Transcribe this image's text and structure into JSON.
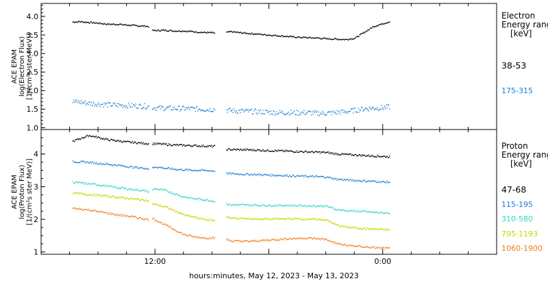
{
  "chart_data": [
    {
      "type": "scatter",
      "panel": "electron",
      "ylabel_lines": [
        "ACE EPAM",
        "log(Electron Flux)",
        "[1/(cm²s ster MeV)]"
      ],
      "ylim": [
        0.95,
        4.35
      ],
      "yticks": [
        "1.0",
        "1.5",
        "2.0",
        "2.5",
        "3.0",
        "3.5",
        "4.0"
      ],
      "legend_title": [
        "Electron",
        "Energy range",
        "[keV]"
      ],
      "colors": {
        "38-53": "#000000",
        "175-315": "#1f7fd0"
      },
      "series": [
        {
          "name": "38-53",
          "color": "#000000",
          "segments": [
            {
              "t": [
                3.3,
                4,
                5,
                6,
                7,
                8,
                9,
                10,
                11,
                11.3
              ],
              "y": [
                3.86,
                3.87,
                3.85,
                3.83,
                3.8,
                3.8,
                3.78,
                3.76,
                3.75,
                3.74
              ]
            },
            {
              "t": [
                11.7,
                12,
                13,
                14,
                15,
                16,
                17,
                18,
                18.3
              ],
              "y": [
                3.63,
                3.63,
                3.64,
                3.62,
                3.62,
                3.6,
                3.58,
                3.57,
                3.56
              ]
            },
            {
              "t": [
                19.5,
                20,
                21,
                22,
                23,
                24,
                25,
                26,
                27,
                28,
                29,
                30,
                31,
                32,
                33,
                34,
                35,
                36,
                36.7
              ],
              "y": [
                3.58,
                3.6,
                3.57,
                3.55,
                3.53,
                3.51,
                3.49,
                3.47,
                3.45,
                3.44,
                3.43,
                3.41,
                3.4,
                3.39,
                3.42,
                3.58,
                3.74,
                3.82,
                3.87
              ]
            }
          ]
        },
        {
          "name": "175-315",
          "color": "#1f7fd0",
          "segments": [
            {
              "t": [
                3.3,
                4,
                5,
                6,
                7,
                8,
                9,
                10,
                11,
                11.3
              ],
              "y": [
                1.72,
                1.7,
                1.67,
                1.65,
                1.63,
                1.62,
                1.61,
                1.6,
                1.59,
                1.58
              ]
            },
            {
              "t": [
                11.7,
                12,
                13,
                14,
                15,
                16,
                17,
                18,
                18.3
              ],
              "y": [
                1.56,
                1.55,
                1.54,
                1.53,
                1.53,
                1.52,
                1.51,
                1.5,
                1.52
              ]
            },
            {
              "t": [
                19.5,
                20,
                21,
                22,
                23,
                24,
                25,
                26,
                27,
                28,
                29,
                30,
                31,
                32,
                33,
                34,
                35,
                36,
                36.7
              ],
              "y": [
                1.49,
                1.47,
                1.46,
                1.45,
                1.44,
                1.43,
                1.42,
                1.42,
                1.41,
                1.42,
                1.4,
                1.4,
                1.42,
                1.44,
                1.48,
                1.52,
                1.54,
                1.55,
                1.57
              ]
            }
          ]
        }
      ]
    },
    {
      "type": "scatter",
      "panel": "proton",
      "ylabel_lines": [
        "ACE EPAM",
        "log(Proton Flux)",
        "[1/(cm²s ster MeV)]"
      ],
      "ylim": [
        0.93,
        4.75
      ],
      "yticks": [
        "1",
        "2",
        "3",
        "4"
      ],
      "legend_title": [
        "Proton",
        "Energy range",
        "[keV]"
      ],
      "colors": {
        "47-68": "#000000",
        "115-195": "#1f7fd0",
        "310-580": "#33d6c0",
        "795-1193": "#c8d400",
        "1060-1900": "#f07f1a"
      },
      "series": [
        {
          "name": "47-68",
          "color": "#000000",
          "segments": [
            {
              "t": [
                3.3,
                4,
                5,
                6,
                7,
                8,
                9,
                10,
                11,
                11.3
              ],
              "y": [
                4.4,
                4.48,
                4.58,
                4.52,
                4.45,
                4.42,
                4.38,
                4.36,
                4.34,
                4.32
              ]
            },
            {
              "t": [
                11.7,
                12,
                13,
                14,
                15,
                16,
                17,
                18,
                18.3
              ],
              "y": [
                4.33,
                4.33,
                4.31,
                4.29,
                4.28,
                4.27,
                4.26,
                4.25,
                4.25
              ]
            },
            {
              "t": [
                19.5,
                20,
                22,
                24,
                26,
                28,
                30,
                31,
                32,
                34,
                36,
                36.7
              ],
              "y": [
                4.15,
                4.15,
                4.14,
                4.12,
                4.1,
                4.08,
                4.06,
                4.02,
                4.0,
                3.97,
                3.94,
                3.93
              ]
            }
          ]
        },
        {
          "name": "115-195",
          "color": "#1f7fd0",
          "segments": [
            {
              "t": [
                3.3,
                4,
                5,
                6,
                7,
                8,
                9,
                10,
                11,
                11.3
              ],
              "y": [
                3.78,
                3.77,
                3.76,
                3.73,
                3.7,
                3.67,
                3.63,
                3.6,
                3.58,
                3.56
              ]
            },
            {
              "t": [
                11.7,
                12,
                13,
                14,
                15,
                16,
                17,
                18,
                18.3
              ],
              "y": [
                3.58,
                3.62,
                3.58,
                3.55,
                3.53,
                3.52,
                3.51,
                3.5,
                3.5
              ]
            },
            {
              "t": [
                19.5,
                20,
                22,
                24,
                26,
                28,
                30,
                31,
                32,
                34,
                36,
                36.7
              ],
              "y": [
                3.42,
                3.41,
                3.39,
                3.37,
                3.35,
                3.33,
                3.31,
                3.25,
                3.22,
                3.19,
                3.16,
                3.15
              ]
            }
          ]
        },
        {
          "name": "310-580",
          "color": "#33d6c0",
          "segments": [
            {
              "t": [
                3.3,
                4,
                5,
                6,
                7,
                8,
                9,
                10,
                11,
                11.3
              ],
              "y": [
                3.15,
                3.13,
                3.1,
                3.07,
                3.03,
                2.98,
                2.95,
                2.92,
                2.88,
                2.85
              ]
            },
            {
              "t": [
                11.7,
                12,
                13,
                14,
                15,
                16,
                17,
                18,
                18.3
              ],
              "y": [
                2.92,
                2.95,
                2.9,
                2.8,
                2.7,
                2.65,
                2.62,
                2.58,
                2.55
              ]
            },
            {
              "t": [
                19.5,
                20,
                22,
                24,
                26,
                28,
                30,
                31,
                32,
                34,
                36,
                36.7
              ],
              "y": [
                2.48,
                2.46,
                2.45,
                2.44,
                2.44,
                2.43,
                2.42,
                2.32,
                2.28,
                2.25,
                2.21,
                2.2
              ]
            }
          ]
        },
        {
          "name": "795-1193",
          "color": "#c8d400",
          "segments": [
            {
              "t": [
                3.3,
                4,
                5,
                6,
                7,
                8,
                9,
                10,
                11,
                11.3
              ],
              "y": [
                2.82,
                2.8,
                2.77,
                2.75,
                2.72,
                2.69,
                2.66,
                2.63,
                2.6,
                2.57
              ]
            },
            {
              "t": [
                11.7,
                12,
                13,
                14,
                15,
                16,
                17,
                18,
                18.3
              ],
              "y": [
                2.48,
                2.47,
                2.4,
                2.28,
                2.15,
                2.08,
                2.02,
                1.98,
                1.97
              ]
            },
            {
              "t": [
                19.5,
                20,
                22,
                24,
                26,
                28,
                30,
                31,
                32,
                34,
                36,
                36.7
              ],
              "y": [
                2.1,
                2.05,
                2.03,
                2.02,
                2.03,
                2.02,
                2.0,
                1.85,
                1.78,
                1.73,
                1.7,
                1.69
              ]
            }
          ]
        },
        {
          "name": "1060-1900",
          "color": "#f07f1a",
          "segments": [
            {
              "t": [
                3.3,
                4,
                5,
                6,
                7,
                8,
                9,
                10,
                11,
                11.3
              ],
              "y": [
                2.35,
                2.33,
                2.3,
                2.25,
                2.2,
                2.15,
                2.12,
                2.07,
                2.02,
                2.0
              ]
            },
            {
              "t": [
                11.7,
                12,
                13,
                14,
                15,
                16,
                17,
                18,
                18.3
              ],
              "y": [
                2.05,
                2.0,
                1.85,
                1.7,
                1.55,
                1.48,
                1.45,
                1.44,
                1.43
              ]
            },
            {
              "t": [
                19.5,
                20,
                22,
                24,
                26,
                28,
                30,
                31,
                32,
                34,
                36,
                36.7
              ],
              "y": [
                1.4,
                1.35,
                1.34,
                1.38,
                1.42,
                1.44,
                1.4,
                1.28,
                1.22,
                1.17,
                1.13,
                1.12
              ]
            }
          ]
        }
      ]
    }
  ],
  "x_axis": {
    "hours_range": [
      0,
      48
    ],
    "tick_labels": [
      "12:00",
      "0:00"
    ],
    "title": "hours:minutes, May 12, 2023 - May 13, 2023"
  },
  "legends": {
    "electron": {
      "title_lines": [
        "Electron",
        "Energy range",
        "[keV]"
      ],
      "channels": [
        {
          "label": "38-53",
          "color": "#000000"
        },
        {
          "label": "175-315",
          "color": "#1f7fd0"
        }
      ]
    },
    "proton": {
      "title_lines": [
        "Proton",
        "Energy range",
        "[keV]"
      ],
      "channels": [
        {
          "label": "47-68",
          "color": "#000000"
        },
        {
          "label": "115-195",
          "color": "#1f7fd0"
        },
        {
          "label": "310-580",
          "color": "#33d6c0"
        },
        {
          "label": "795-1193",
          "color": "#c8d400"
        },
        {
          "label": "1060-1900",
          "color": "#f07f1a"
        }
      ]
    }
  }
}
